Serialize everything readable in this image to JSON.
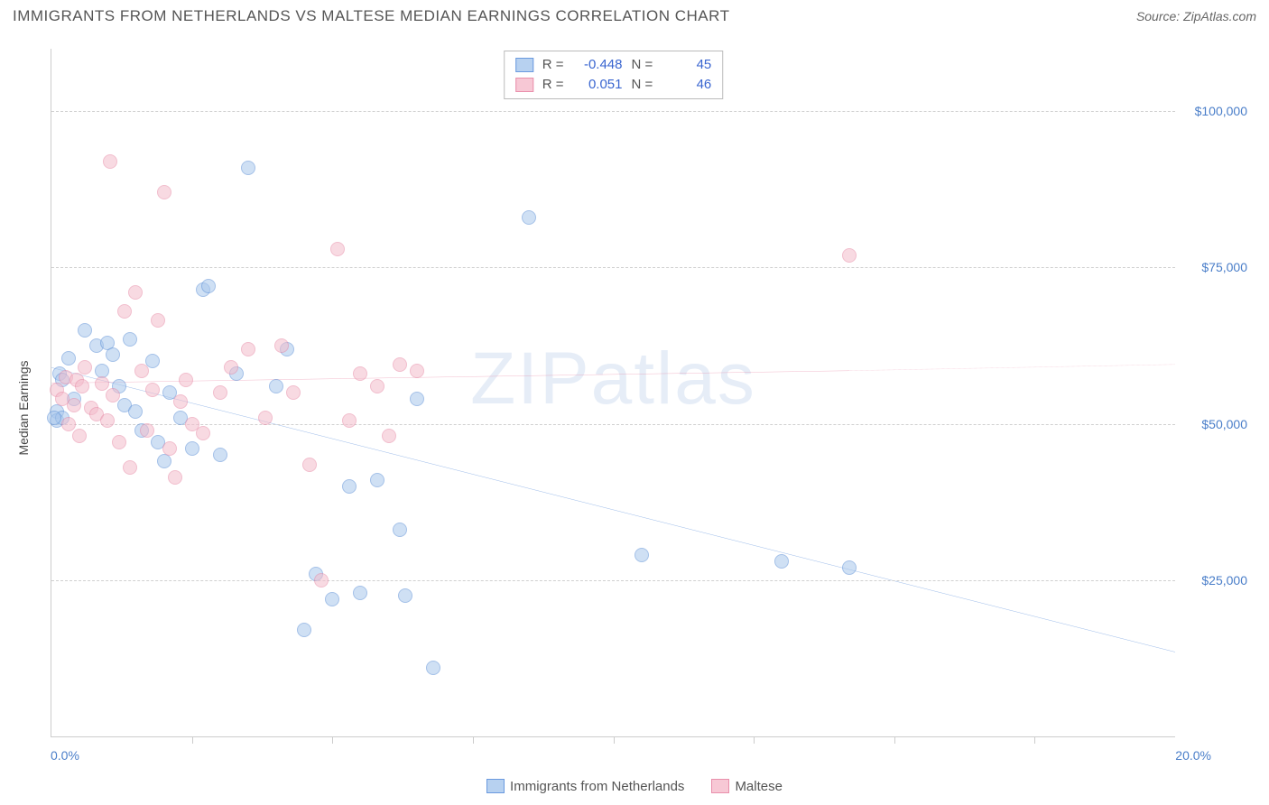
{
  "header": {
    "title": "IMMIGRANTS FROM NETHERLANDS VS MALTESE MEDIAN EARNINGS CORRELATION CHART",
    "source_prefix": "Source: ",
    "source_name": "ZipAtlas.com"
  },
  "watermark": "ZIPatlas",
  "chart": {
    "type": "scatter",
    "y_axis_title": "Median Earnings",
    "background_color": "#ffffff",
    "grid_color": "#d0d0d0",
    "axis_color": "#cccccc",
    "xlim": [
      0,
      20
    ],
    "ylim": [
      0,
      110000
    ],
    "x_ticks": [
      2.5,
      5.0,
      7.5,
      10.0,
      12.5,
      15.0,
      17.5
    ],
    "x_min_label": "0.0%",
    "x_max_label": "20.0%",
    "y_gridlines": [
      {
        "value": 25000,
        "label": "$25,000"
      },
      {
        "value": 50000,
        "label": "$50,000"
      },
      {
        "value": 75000,
        "label": "$75,000"
      },
      {
        "value": 100000,
        "label": "$100,000"
      }
    ],
    "y_label_color": "#4a7ec9",
    "x_label_color": "#4a7ec9",
    "point_radius": 8,
    "point_opacity": 0.55,
    "series": [
      {
        "name": "Immigrants from Netherlands",
        "color_fill": "#a9c7ec",
        "color_stroke": "#5b8fd6",
        "swatch_fill": "#b7d1f0",
        "swatch_stroke": "#6a9adf",
        "R": "-0.448",
        "N": "45",
        "trend": {
          "x1": 0,
          "y1": 59000,
          "x2": 20,
          "y2": 13500,
          "dash_from_x": 20,
          "color": "#2f6fd1",
          "width": 2
        },
        "points": [
          [
            0.1,
            52000
          ],
          [
            0.1,
            50500
          ],
          [
            0.15,
            58000
          ],
          [
            0.2,
            57000
          ],
          [
            0.2,
            51000
          ],
          [
            0.3,
            60500
          ],
          [
            0.4,
            54000
          ],
          [
            0.6,
            65000
          ],
          [
            0.8,
            62500
          ],
          [
            0.9,
            58500
          ],
          [
            1.0,
            63000
          ],
          [
            1.1,
            61000
          ],
          [
            1.2,
            56000
          ],
          [
            1.3,
            53000
          ],
          [
            1.4,
            63500
          ],
          [
            1.5,
            52000
          ],
          [
            1.6,
            49000
          ],
          [
            1.8,
            60000
          ],
          [
            1.9,
            47000
          ],
          [
            2.0,
            44000
          ],
          [
            2.1,
            55000
          ],
          [
            2.3,
            51000
          ],
          [
            2.5,
            46000
          ],
          [
            2.7,
            71500
          ],
          [
            2.8,
            72000
          ],
          [
            3.0,
            45000
          ],
          [
            3.3,
            58000
          ],
          [
            3.5,
            91000
          ],
          [
            4.0,
            56000
          ],
          [
            4.2,
            62000
          ],
          [
            4.5,
            17000
          ],
          [
            4.7,
            26000
          ],
          [
            5.0,
            22000
          ],
          [
            5.3,
            40000
          ],
          [
            5.5,
            23000
          ],
          [
            5.8,
            41000
          ],
          [
            6.2,
            33000
          ],
          [
            6.5,
            54000
          ],
          [
            6.8,
            11000
          ],
          [
            6.3,
            22500
          ],
          [
            8.5,
            83000
          ],
          [
            10.5,
            29000
          ],
          [
            13.0,
            28000
          ],
          [
            14.2,
            27000
          ],
          [
            0.05,
            51000
          ]
        ]
      },
      {
        "name": "Maltese",
        "color_fill": "#f3bccb",
        "color_stroke": "#e78aa6",
        "swatch_fill": "#f7c8d5",
        "swatch_stroke": "#e98fab",
        "R": "0.051",
        "N": "46",
        "trend": {
          "x1": 0,
          "y1": 56500,
          "x2": 14.2,
          "y2": 58500,
          "dash_from_x": 14.2,
          "x_end": 20,
          "y_end": 59500,
          "color": "#e36f94",
          "width": 2
        },
        "points": [
          [
            0.1,
            55500
          ],
          [
            0.2,
            54000
          ],
          [
            0.25,
            57500
          ],
          [
            0.3,
            50000
          ],
          [
            0.4,
            53000
          ],
          [
            0.45,
            57000
          ],
          [
            0.5,
            48000
          ],
          [
            0.55,
            56000
          ],
          [
            0.6,
            59000
          ],
          [
            0.7,
            52500
          ],
          [
            0.8,
            51500
          ],
          [
            0.9,
            56500
          ],
          [
            1.0,
            50500
          ],
          [
            1.05,
            92000
          ],
          [
            1.1,
            54500
          ],
          [
            1.2,
            47000
          ],
          [
            1.3,
            68000
          ],
          [
            1.4,
            43000
          ],
          [
            1.5,
            71000
          ],
          [
            1.6,
            58500
          ],
          [
            1.7,
            49000
          ],
          [
            1.8,
            55500
          ],
          [
            1.9,
            66500
          ],
          [
            2.0,
            87000
          ],
          [
            2.1,
            46000
          ],
          [
            2.2,
            41500
          ],
          [
            2.3,
            53500
          ],
          [
            2.4,
            57000
          ],
          [
            2.5,
            50000
          ],
          [
            2.7,
            48500
          ],
          [
            3.0,
            55000
          ],
          [
            3.2,
            59000
          ],
          [
            3.5,
            62000
          ],
          [
            3.8,
            51000
          ],
          [
            4.1,
            62500
          ],
          [
            4.3,
            55000
          ],
          [
            4.6,
            43500
          ],
          [
            4.8,
            25000
          ],
          [
            5.1,
            78000
          ],
          [
            5.3,
            50500
          ],
          [
            5.5,
            58000
          ],
          [
            5.8,
            56000
          ],
          [
            6.0,
            48000
          ],
          [
            6.2,
            59500
          ],
          [
            6.5,
            58500
          ],
          [
            14.2,
            77000
          ]
        ]
      }
    ]
  },
  "legend_bottom": {
    "items": [
      {
        "label": "Immigrants from Netherlands",
        "series": 0
      },
      {
        "label": "Maltese",
        "series": 1
      }
    ]
  }
}
